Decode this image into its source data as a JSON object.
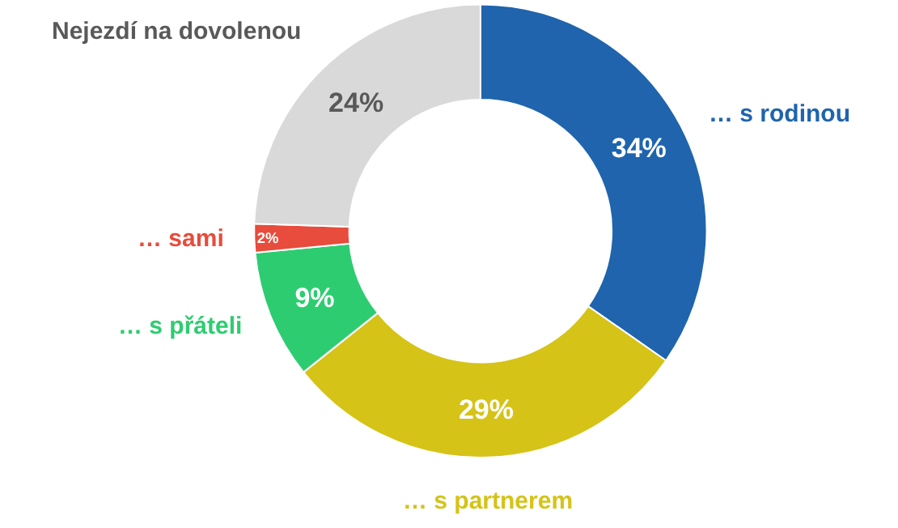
{
  "chart_data": {
    "type": "donut",
    "categories": [
      "… s rodinou",
      "… s partnerem",
      "… s přáteli",
      "… sami",
      "Nejezdí na dovolenou"
    ],
    "values": [
      34,
      29,
      9,
      2,
      24
    ],
    "colors": [
      "#1f64ad",
      "#d5c317",
      "#2ecc71",
      "#e74c3c",
      "#d9d9d9"
    ],
    "value_labels": [
      "34%",
      "29%",
      "9%",
      "2%",
      "24%"
    ],
    "legend": false
  }
}
